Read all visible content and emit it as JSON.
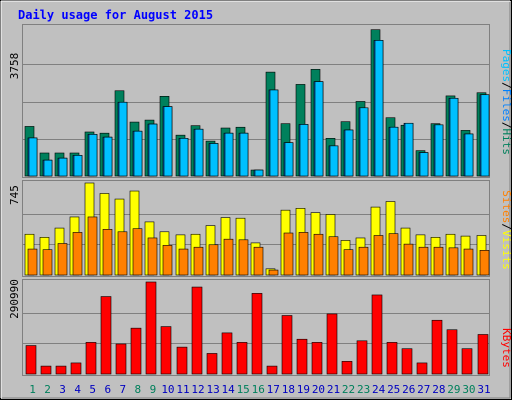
{
  "title": "Daily usage for August 2015",
  "colors": {
    "background": "#c0c0c0",
    "plot_bg": "#c0c0c0",
    "title": "#0000ff",
    "hits": "#00805c",
    "files": "#0080ff",
    "pages": "#00c0ff",
    "visits": "#ffff00",
    "sites": "#ff8000",
    "kbytes": "#ff0000",
    "weekend_label": "#00805c",
    "weekday_label": "#0000c0"
  },
  "chart_data": [
    {
      "type": "bar",
      "panel": "hits-files-pages",
      "ymax_label": "3758",
      "ymax": 3758,
      "categories": [
        "1",
        "2",
        "3",
        "4",
        "5",
        "6",
        "7",
        "8",
        "9",
        "10",
        "11",
        "12",
        "13",
        "14",
        "15",
        "16",
        "17",
        "18",
        "19",
        "20",
        "21",
        "22",
        "23",
        "24",
        "25",
        "26",
        "27",
        "28",
        "29",
        "30",
        "31"
      ],
      "weekend": [
        1,
        2,
        8,
        9,
        15,
        16,
        22,
        23,
        29,
        30
      ],
      "series": [
        {
          "name": "Hits",
          "values": [
            1250,
            580,
            580,
            580,
            1110,
            1080,
            2150,
            1360,
            1410,
            2010,
            1030,
            1270,
            880,
            1210,
            1230,
            150,
            2620,
            1320,
            2310,
            2690,
            950,
            1370,
            1880,
            3690,
            1470,
            1280,
            640,
            1320,
            2020,
            1150,
            2100
          ]
        },
        {
          "name": "Files",
          "values": [
            960,
            400,
            450,
            520,
            1050,
            980,
            1860,
            1130,
            1310,
            1750,
            950,
            1180,
            820,
            1080,
            1080,
            150,
            2170,
            840,
            1300,
            2380,
            760,
            1160,
            1720,
            3420,
            1230,
            1330,
            590,
            1290,
            1960,
            1060,
            2050
          ]
        },
        {
          "name": "Pages",
          "values": [
            960,
            400,
            450,
            520,
            1050,
            980,
            1860,
            1130,
            1310,
            1750,
            950,
            1180,
            820,
            1080,
            1080,
            150,
            2170,
            840,
            1300,
            2380,
            760,
            1160,
            1720,
            3420,
            1230,
            1330,
            590,
            1290,
            1960,
            1060,
            2050
          ]
        }
      ],
      "legend": [
        "Hits",
        "Files",
        "Pages"
      ]
    },
    {
      "type": "bar",
      "panel": "visits-sites",
      "ymax_label": "745",
      "ymax": 745,
      "categories": [
        "1",
        "2",
        "3",
        "4",
        "5",
        "6",
        "7",
        "8",
        "9",
        "10",
        "11",
        "12",
        "13",
        "14",
        "15",
        "16",
        "17",
        "18",
        "19",
        "20",
        "21",
        "22",
        "23",
        "24",
        "25",
        "26",
        "27",
        "28",
        "29",
        "30",
        "31"
      ],
      "weekend": [
        1,
        2,
        8,
        9,
        15,
        16,
        22,
        23,
        29,
        30
      ],
      "series": [
        {
          "name": "Visits",
          "values": [
            330,
            305,
            380,
            470,
            745,
            660,
            615,
            680,
            430,
            350,
            325,
            330,
            400,
            465,
            460,
            260,
            50,
            525,
            540,
            505,
            490,
            280,
            300,
            550,
            595,
            380,
            325,
            305,
            330,
            315,
            320
          ]
        },
        {
          "name": "Sites",
          "values": [
            210,
            205,
            255,
            345,
            470,
            370,
            350,
            375,
            300,
            240,
            210,
            225,
            245,
            290,
            285,
            225,
            40,
            340,
            345,
            330,
            310,
            205,
            225,
            320,
            335,
            250,
            225,
            225,
            220,
            210,
            200
          ]
        }
      ],
      "legend": [
        "Visits",
        "Sites"
      ]
    },
    {
      "type": "bar",
      "panel": "kbytes",
      "ymax_label": "290990",
      "ymax": 290990,
      "categories": [
        "1",
        "2",
        "3",
        "4",
        "5",
        "6",
        "7",
        "8",
        "9",
        "10",
        "11",
        "12",
        "13",
        "14",
        "15",
        "16",
        "17",
        "18",
        "19",
        "20",
        "21",
        "22",
        "23",
        "24",
        "25",
        "26",
        "27",
        "28",
        "29",
        "30",
        "31"
      ],
      "weekend": [
        1,
        2,
        8,
        9,
        15,
        16,
        22,
        23,
        29,
        30
      ],
      "series": [
        {
          "name": "KBytes",
          "values": [
            90000,
            25000,
            25000,
            35000,
            100000,
            245000,
            95000,
            145000,
            290990,
            150000,
            85000,
            275000,
            65000,
            130000,
            100000,
            255000,
            25000,
            185000,
            110000,
            100000,
            190000,
            40000,
            105000,
            250000,
            100000,
            80000,
            35000,
            170000,
            140000,
            80000,
            125000
          ]
        }
      ],
      "legend": [
        "KBytes"
      ]
    }
  ],
  "y_axis_labels": [
    "3758",
    "745",
    "290990"
  ],
  "legend_labels": {
    "top": [
      "Pages",
      "/",
      "Files",
      "/",
      "Hits"
    ],
    "middle": [
      "Sites",
      "/",
      "Visits"
    ],
    "bottom": [
      "KBytes"
    ]
  }
}
